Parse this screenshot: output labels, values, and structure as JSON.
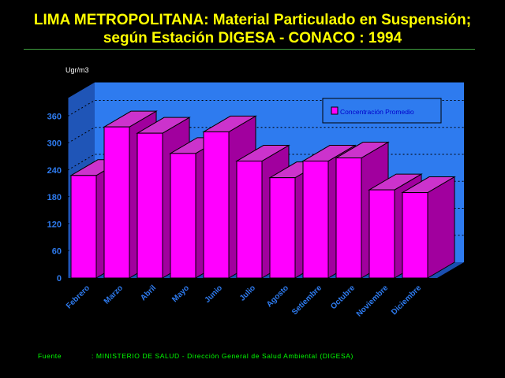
{
  "title": {
    "line1": "LIMA METROPOLITANA: Material Particulado en Suspensión;",
    "line2": "según Estación DIGESA - CONACO : 1994"
  },
  "source": {
    "label": "Fuente",
    "text": ": MINISTERIO DE SALUD - Dirección General de Salud Ambiental (DIGESA)"
  },
  "colors": {
    "background": "#000000",
    "title": "#FFFF00",
    "plot_back": "#2E7BEF",
    "plot_side": "#1F55B7",
    "plot_floor": "#1A4FB0",
    "bar_front": "#FF00FF",
    "bar_side": "#A1009E",
    "bar_top": "#CC33CC",
    "axis_text": "#2E7BEF",
    "source": "#00FF00",
    "legend_text": "#0000CC"
  },
  "chart_data": {
    "type": "bar",
    "title": "LIMA METROPOLITANA: Material Particulado en Suspensión; según Estación DIGESA - CONACO : 1994",
    "ylabel": "Ugr/m3",
    "xlabel": "",
    "categories": [
      "Febrero",
      "Marzo",
      "Abril",
      "Mayo",
      "Junio",
      "Julio",
      "Agosto",
      "Setiembre",
      "Octubre",
      "Noviembre",
      "Diciembre"
    ],
    "series": [
      {
        "name": "Concentración Promedio",
        "values": [
          228,
          336,
          322,
          277,
          325,
          260,
          223,
          260,
          267,
          196,
          190
        ]
      }
    ],
    "ylim": [
      0,
      400
    ],
    "yticks": [
      0,
      60,
      120,
      180,
      240,
      300,
      360
    ],
    "grid": true,
    "legend_position": "top-right"
  }
}
